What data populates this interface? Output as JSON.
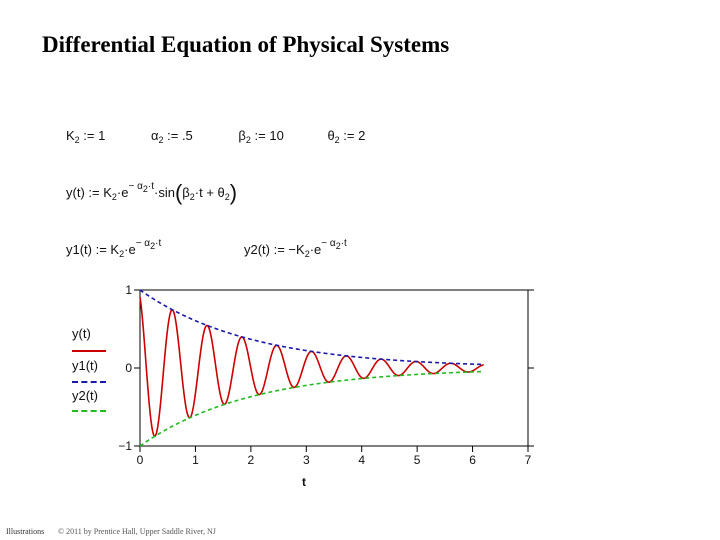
{
  "title": "Differential Equation of Physical Systems",
  "equations": {
    "line1": {
      "k": "K",
      "k_sub": "2",
      "k_assign": " := 1",
      "alpha": "α",
      "alpha_sub": "2",
      "alpha_assign": " := .5",
      "beta": "β",
      "beta_sub": "2",
      "beta_assign": " := 10",
      "theta": "θ",
      "theta_sub": "2",
      "theta_assign": " := 2"
    },
    "line2": {
      "lhs": "y(t) := K",
      "k_sub": "2",
      "e": "·e",
      "exp": "− α",
      "exp_sub": "2",
      "exp_t": "·t",
      "sin": "·sin",
      "paren_open": "(",
      "beta": "β",
      "beta_sub": "2",
      "mid": "·t + θ",
      "theta_sub": "2",
      "paren_close": ")"
    },
    "line3": {
      "y1_lhs": "y1(t) := K",
      "y1_sub": "2",
      "y1_e": "·e",
      "y1_exp": "− α",
      "y1_exp_sub": "2",
      "y1_exp_t": "·t",
      "y2_lhs": "y2(t) := −K",
      "y2_sub": "2",
      "y2_e": "·e",
      "y2_exp": "− α",
      "y2_exp_sub": "2",
      "y2_exp_t": "·t"
    }
  },
  "legend": {
    "entries": [
      {
        "label": "y(t)",
        "color": "#cc0000",
        "style": "solid"
      },
      {
        "label": "y1(t)",
        "color": "#1a1aaa",
        "style": "dashed"
      },
      {
        "label": "y2(t)",
        "color": "#22bb22",
        "style": "dashed"
      }
    ]
  },
  "chart_data": {
    "type": "line",
    "xlabel": "t",
    "xlim": [
      0,
      7
    ],
    "ylim": [
      -1,
      1
    ],
    "x_ticks": [
      "0",
      "1",
      "2",
      "3",
      "4",
      "5",
      "6",
      "7"
    ],
    "y_ticks": [
      "1",
      "0",
      "−1"
    ],
    "parameters": {
      "K2": 1,
      "alpha2": 0.5,
      "beta2": 10,
      "theta2": 2
    },
    "t_range": [
      0,
      6.2
    ],
    "series": [
      {
        "name": "y(t)",
        "formula": "K2·e^(−α2·t)·sin(β2·t + θ2)",
        "color": "#cc0000",
        "style": "solid"
      },
      {
        "name": "y1(t)",
        "formula": "K2·e^(−α2·t)",
        "color": "#1a1aaa",
        "style": "dashed"
      },
      {
        "name": "y2(t)",
        "formula": "−K2·e^(−α2·t)",
        "color": "#22bb22",
        "style": "dashed"
      }
    ],
    "grid": false,
    "legend_position": "left"
  },
  "footer": {
    "left": "Illustrations",
    "right": "© 2011 by Prentice Hall, Upper Saddle River, NJ"
  }
}
